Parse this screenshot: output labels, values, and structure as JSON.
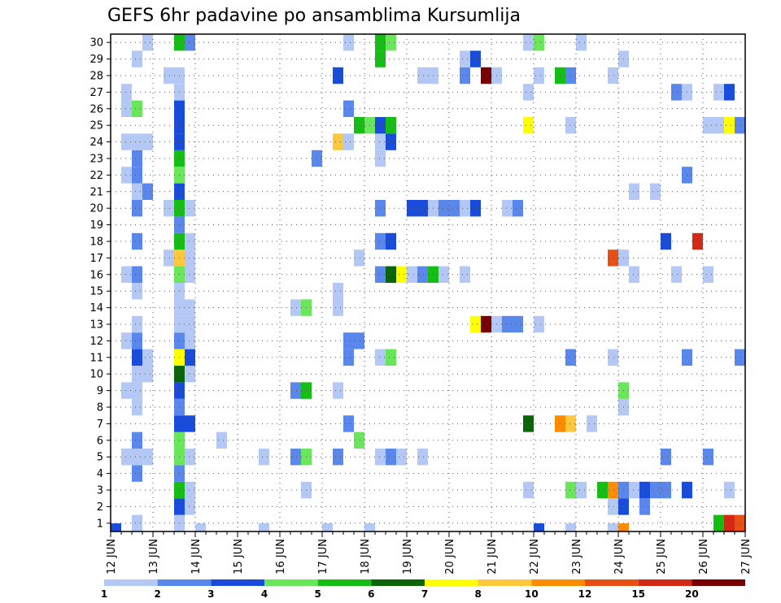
{
  "chart_data": {
    "type": "heatmap",
    "title": "GEFS 6hr padavine po ansamblima Kursumlija",
    "x_ticks": [
      "12 JUN",
      "13 JUN",
      "14 JUN",
      "15 JUN",
      "16 JUN",
      "17 JUN",
      "18 JUN",
      "19 JUN",
      "20 JUN",
      "21 JUN",
      "22 JUN",
      "23 JUN",
      "24 JUN",
      "25 JUN",
      "26 JUN",
      "27 JUN"
    ],
    "y_ticks": [
      "1",
      "2",
      "3",
      "4",
      "5",
      "6",
      "7",
      "8",
      "9",
      "10",
      "11",
      "12",
      "13",
      "14",
      "15",
      "16",
      "17",
      "18",
      "19",
      "20",
      "21",
      "22",
      "23",
      "24",
      "25",
      "26",
      "27",
      "28",
      "29",
      "30"
    ],
    "xlim": [
      0,
      60
    ],
    "ylim": [
      0,
      30
    ],
    "grid": true,
    "colorbar": {
      "ticks": [
        "1",
        "2",
        "3",
        "4",
        "5",
        "6",
        "7",
        "8",
        "10",
        "12",
        "15",
        "20"
      ],
      "colors": [
        "#b4c8f5",
        "#5a87ec",
        "#1a4cdc",
        "#6ae65a",
        "#14be14",
        "#0a640a",
        "#ffff00",
        "#ffc83c",
        "#ff8c00",
        "#e65014",
        "#d22814",
        "#780000"
      ]
    },
    "cells": [
      {
        "x": 0,
        "y": 0,
        "c": 2
      },
      {
        "x": 2,
        "y": 0,
        "c": 0
      },
      {
        "x": 8,
        "y": 0,
        "c": 0
      },
      {
        "x": 14,
        "y": 0,
        "c": 0
      },
      {
        "x": 20,
        "y": 0,
        "c": 0
      },
      {
        "x": 24,
        "y": 0,
        "c": 0
      },
      {
        "x": 40,
        "y": 0,
        "c": 2
      },
      {
        "x": 43,
        "y": 0,
        "c": 0
      },
      {
        "x": 47,
        "y": 0,
        "c": 0
      },
      {
        "x": 48,
        "y": 0,
        "c": 8
      },
      {
        "x": 2,
        "y": 1,
        "c": 0
      },
      {
        "x": 6,
        "y": 1,
        "c": 0
      },
      {
        "x": 57,
        "y": 1,
        "c": 4
      },
      {
        "x": 58,
        "y": 1,
        "c": 10
      },
      {
        "x": 59,
        "y": 1,
        "c": 9
      },
      {
        "x": 6,
        "y": 2,
        "c": 2
      },
      {
        "x": 7,
        "y": 2,
        "c": 0
      },
      {
        "x": 47,
        "y": 2,
        "c": 0
      },
      {
        "x": 48,
        "y": 2,
        "c": 2
      },
      {
        "x": 50,
        "y": 2,
        "c": 1
      },
      {
        "x": 6,
        "y": 3,
        "c": 4
      },
      {
        "x": 7,
        "y": 3,
        "c": 0
      },
      {
        "x": 18,
        "y": 3,
        "c": 0
      },
      {
        "x": 39,
        "y": 3,
        "c": 0
      },
      {
        "x": 43,
        "y": 3,
        "c": 3
      },
      {
        "x": 44,
        "y": 3,
        "c": 0
      },
      {
        "x": 46,
        "y": 3,
        "c": 4
      },
      {
        "x": 47,
        "y": 3,
        "c": 8
      },
      {
        "x": 48,
        "y": 3,
        "c": 1
      },
      {
        "x": 49,
        "y": 3,
        "c": 0
      },
      {
        "x": 50,
        "y": 3,
        "c": 2
      },
      {
        "x": 51,
        "y": 3,
        "c": 1
      },
      {
        "x": 52,
        "y": 3,
        "c": 1
      },
      {
        "x": 54,
        "y": 3,
        "c": 2
      },
      {
        "x": 58,
        "y": 3,
        "c": 0
      },
      {
        "x": 2,
        "y": 4,
        "c": 1
      },
      {
        "x": 6,
        "y": 4,
        "c": 1
      },
      {
        "x": 1,
        "y": 5,
        "c": 0
      },
      {
        "x": 2,
        "y": 5,
        "c": 0
      },
      {
        "x": 3,
        "y": 5,
        "c": 0
      },
      {
        "x": 6,
        "y": 5,
        "c": 3
      },
      {
        "x": 7,
        "y": 5,
        "c": 0
      },
      {
        "x": 14,
        "y": 5,
        "c": 0
      },
      {
        "x": 17,
        "y": 5,
        "c": 1
      },
      {
        "x": 18,
        "y": 5,
        "c": 3
      },
      {
        "x": 21,
        "y": 5,
        "c": 1
      },
      {
        "x": 25,
        "y": 5,
        "c": 0
      },
      {
        "x": 26,
        "y": 5,
        "c": 1
      },
      {
        "x": 27,
        "y": 5,
        "c": 0
      },
      {
        "x": 29,
        "y": 5,
        "c": 0
      },
      {
        "x": 52,
        "y": 5,
        "c": 1
      },
      {
        "x": 56,
        "y": 5,
        "c": 1
      },
      {
        "x": 2,
        "y": 6,
        "c": 1
      },
      {
        "x": 6,
        "y": 6,
        "c": 3
      },
      {
        "x": 10,
        "y": 6,
        "c": 0
      },
      {
        "x": 23,
        "y": 6,
        "c": 3
      },
      {
        "x": 6,
        "y": 7,
        "c": 2
      },
      {
        "x": 7,
        "y": 7,
        "c": 2
      },
      {
        "x": 22,
        "y": 7,
        "c": 1
      },
      {
        "x": 39,
        "y": 7,
        "c": 5
      },
      {
        "x": 42,
        "y": 7,
        "c": 8
      },
      {
        "x": 43,
        "y": 7,
        "c": 7
      },
      {
        "x": 45,
        "y": 7,
        "c": 0
      },
      {
        "x": 2,
        "y": 8,
        "c": 0
      },
      {
        "x": 6,
        "y": 8,
        "c": 1
      },
      {
        "x": 48,
        "y": 8,
        "c": 0
      },
      {
        "x": 1,
        "y": 9,
        "c": 0
      },
      {
        "x": 2,
        "y": 9,
        "c": 0
      },
      {
        "x": 6,
        "y": 9,
        "c": 2
      },
      {
        "x": 17,
        "y": 9,
        "c": 1
      },
      {
        "x": 18,
        "y": 9,
        "c": 4
      },
      {
        "x": 21,
        "y": 9,
        "c": 0
      },
      {
        "x": 48,
        "y": 9,
        "c": 3
      },
      {
        "x": 2,
        "y": 10,
        "c": 0
      },
      {
        "x": 3,
        "y": 10,
        "c": 0
      },
      {
        "x": 6,
        "y": 10,
        "c": 5
      },
      {
        "x": 7,
        "y": 10,
        "c": 0
      },
      {
        "x": 2,
        "y": 11,
        "c": 2
      },
      {
        "x": 3,
        "y": 11,
        "c": 0
      },
      {
        "x": 6,
        "y": 11,
        "c": 6
      },
      {
        "x": 7,
        "y": 11,
        "c": 2
      },
      {
        "x": 22,
        "y": 11,
        "c": 1
      },
      {
        "x": 25,
        "y": 11,
        "c": 0
      },
      {
        "x": 26,
        "y": 11,
        "c": 3
      },
      {
        "x": 43,
        "y": 11,
        "c": 1
      },
      {
        "x": 47,
        "y": 11,
        "c": 0
      },
      {
        "x": 54,
        "y": 11,
        "c": 1
      },
      {
        "x": 59,
        "y": 11,
        "c": 1
      },
      {
        "x": 1,
        "y": 12,
        "c": 0
      },
      {
        "x": 2,
        "y": 12,
        "c": 1
      },
      {
        "x": 6,
        "y": 12,
        "c": 1
      },
      {
        "x": 7,
        "y": 12,
        "c": 0
      },
      {
        "x": 22,
        "y": 12,
        "c": 1
      },
      {
        "x": 23,
        "y": 12,
        "c": 1
      },
      {
        "x": 2,
        "y": 13,
        "c": 0
      },
      {
        "x": 6,
        "y": 13,
        "c": 0
      },
      {
        "x": 7,
        "y": 13,
        "c": 0
      },
      {
        "x": 34,
        "y": 13,
        "c": 6
      },
      {
        "x": 35,
        "y": 13,
        "c": 11
      },
      {
        "x": 36,
        "y": 13,
        "c": 0
      },
      {
        "x": 37,
        "y": 13,
        "c": 1
      },
      {
        "x": 38,
        "y": 13,
        "c": 1
      },
      {
        "x": 40,
        "y": 13,
        "c": 0
      },
      {
        "x": 6,
        "y": 14,
        "c": 0
      },
      {
        "x": 7,
        "y": 14,
        "c": 0
      },
      {
        "x": 17,
        "y": 14,
        "c": 0
      },
      {
        "x": 18,
        "y": 14,
        "c": 3
      },
      {
        "x": 21,
        "y": 14,
        "c": 0
      },
      {
        "x": 2,
        "y": 15,
        "c": 0
      },
      {
        "x": 6,
        "y": 15,
        "c": 0
      },
      {
        "x": 21,
        "y": 15,
        "c": 0
      },
      {
        "x": 1,
        "y": 16,
        "c": 0
      },
      {
        "x": 2,
        "y": 16,
        "c": 1
      },
      {
        "x": 6,
        "y": 16,
        "c": 3
      },
      {
        "x": 7,
        "y": 16,
        "c": 0
      },
      {
        "x": 25,
        "y": 16,
        "c": 1
      },
      {
        "x": 26,
        "y": 16,
        "c": 5
      },
      {
        "x": 27,
        "y": 16,
        "c": 6
      },
      {
        "x": 28,
        "y": 16,
        "c": 0
      },
      {
        "x": 29,
        "y": 16,
        "c": 1
      },
      {
        "x": 30,
        "y": 16,
        "c": 4
      },
      {
        "x": 31,
        "y": 16,
        "c": 0
      },
      {
        "x": 33,
        "y": 16,
        "c": 0
      },
      {
        "x": 49,
        "y": 16,
        "c": 0
      },
      {
        "x": 53,
        "y": 16,
        "c": 0
      },
      {
        "x": 56,
        "y": 16,
        "c": 0
      },
      {
        "x": 5,
        "y": 17,
        "c": 0
      },
      {
        "x": 6,
        "y": 17,
        "c": 7
      },
      {
        "x": 7,
        "y": 17,
        "c": 0
      },
      {
        "x": 23,
        "y": 17,
        "c": 0
      },
      {
        "x": 47,
        "y": 17,
        "c": 9
      },
      {
        "x": 48,
        "y": 17,
        "c": 0
      },
      {
        "x": 2,
        "y": 18,
        "c": 1
      },
      {
        "x": 6,
        "y": 18,
        "c": 4
      },
      {
        "x": 7,
        "y": 18,
        "c": 0
      },
      {
        "x": 25,
        "y": 18,
        "c": 1
      },
      {
        "x": 26,
        "y": 18,
        "c": 2
      },
      {
        "x": 52,
        "y": 18,
        "c": 2
      },
      {
        "x": 55,
        "y": 18,
        "c": 10
      },
      {
        "x": 6,
        "y": 19,
        "c": 1
      },
      {
        "x": 2,
        "y": 20,
        "c": 1
      },
      {
        "x": 5,
        "y": 20,
        "c": 0
      },
      {
        "x": 6,
        "y": 20,
        "c": 4
      },
      {
        "x": 7,
        "y": 20,
        "c": 0
      },
      {
        "x": 25,
        "y": 20,
        "c": 1
      },
      {
        "x": 28,
        "y": 20,
        "c": 2
      },
      {
        "x": 29,
        "y": 20,
        "c": 2
      },
      {
        "x": 30,
        "y": 20,
        "c": 0
      },
      {
        "x": 31,
        "y": 20,
        "c": 1
      },
      {
        "x": 32,
        "y": 20,
        "c": 1
      },
      {
        "x": 33,
        "y": 20,
        "c": 0
      },
      {
        "x": 34,
        "y": 20,
        "c": 2
      },
      {
        "x": 37,
        "y": 20,
        "c": 0
      },
      {
        "x": 38,
        "y": 20,
        "c": 1
      },
      {
        "x": 2,
        "y": 21,
        "c": 0
      },
      {
        "x": 3,
        "y": 21,
        "c": 1
      },
      {
        "x": 6,
        "y": 21,
        "c": 2
      },
      {
        "x": 49,
        "y": 21,
        "c": 0
      },
      {
        "x": 51,
        "y": 21,
        "c": 0
      },
      {
        "x": 1,
        "y": 22,
        "c": 0
      },
      {
        "x": 2,
        "y": 22,
        "c": 1
      },
      {
        "x": 6,
        "y": 22,
        "c": 3
      },
      {
        "x": 54,
        "y": 22,
        "c": 1
      },
      {
        "x": 2,
        "y": 23,
        "c": 1
      },
      {
        "x": 6,
        "y": 23,
        "c": 4
      },
      {
        "x": 19,
        "y": 23,
        "c": 1
      },
      {
        "x": 25,
        "y": 23,
        "c": 0
      },
      {
        "x": 1,
        "y": 24,
        "c": 0
      },
      {
        "x": 2,
        "y": 24,
        "c": 0
      },
      {
        "x": 3,
        "y": 24,
        "c": 0
      },
      {
        "x": 6,
        "y": 24,
        "c": 2
      },
      {
        "x": 21,
        "y": 24,
        "c": 7
      },
      {
        "x": 22,
        "y": 24,
        "c": 0
      },
      {
        "x": 25,
        "y": 24,
        "c": 0
      },
      {
        "x": 26,
        "y": 24,
        "c": 2
      },
      {
        "x": 6,
        "y": 25,
        "c": 2
      },
      {
        "x": 23,
        "y": 25,
        "c": 4
      },
      {
        "x": 24,
        "y": 25,
        "c": 3
      },
      {
        "x": 25,
        "y": 25,
        "c": 2
      },
      {
        "x": 26,
        "y": 25,
        "c": 4
      },
      {
        "x": 39,
        "y": 25,
        "c": 6
      },
      {
        "x": 43,
        "y": 25,
        "c": 0
      },
      {
        "x": 56,
        "y": 25,
        "c": 0
      },
      {
        "x": 57,
        "y": 25,
        "c": 0
      },
      {
        "x": 58,
        "y": 25,
        "c": 6
      },
      {
        "x": 59,
        "y": 25,
        "c": 1
      },
      {
        "x": 1,
        "y": 26,
        "c": 0
      },
      {
        "x": 2,
        "y": 26,
        "c": 3
      },
      {
        "x": 6,
        "y": 26,
        "c": 2
      },
      {
        "x": 22,
        "y": 26,
        "c": 1
      },
      {
        "x": 1,
        "y": 27,
        "c": 0
      },
      {
        "x": 6,
        "y": 27,
        "c": 0
      },
      {
        "x": 39,
        "y": 27,
        "c": 0
      },
      {
        "x": 53,
        "y": 27,
        "c": 1
      },
      {
        "x": 54,
        "y": 27,
        "c": 0
      },
      {
        "x": 57,
        "y": 27,
        "c": 0
      },
      {
        "x": 58,
        "y": 27,
        "c": 2
      },
      {
        "x": 5,
        "y": 28,
        "c": 0
      },
      {
        "x": 6,
        "y": 28,
        "c": 0
      },
      {
        "x": 21,
        "y": 28,
        "c": 2
      },
      {
        "x": 29,
        "y": 28,
        "c": 0
      },
      {
        "x": 30,
        "y": 28,
        "c": 0
      },
      {
        "x": 33,
        "y": 28,
        "c": 1
      },
      {
        "x": 35,
        "y": 28,
        "c": 11
      },
      {
        "x": 36,
        "y": 28,
        "c": 0
      },
      {
        "x": 40,
        "y": 28,
        "c": 0
      },
      {
        "x": 42,
        "y": 28,
        "c": 4
      },
      {
        "x": 43,
        "y": 28,
        "c": 1
      },
      {
        "x": 47,
        "y": 28,
        "c": 0
      },
      {
        "x": 2,
        "y": 29,
        "c": 0
      },
      {
        "x": 25,
        "y": 29,
        "c": 4
      },
      {
        "x": 33,
        "y": 29,
        "c": 0
      },
      {
        "x": 34,
        "y": 29,
        "c": 2
      },
      {
        "x": 48,
        "y": 29,
        "c": 0
      },
      {
        "x": 3,
        "y": 30,
        "c": 0
      },
      {
        "x": 6,
        "y": 30,
        "c": 4
      },
      {
        "x": 7,
        "y": 30,
        "c": 1
      },
      {
        "x": 22,
        "y": 30,
        "c": 0
      },
      {
        "x": 25,
        "y": 30,
        "c": 4
      },
      {
        "x": 26,
        "y": 30,
        "c": 3
      },
      {
        "x": 39,
        "y": 30,
        "c": 0
      },
      {
        "x": 40,
        "y": 30,
        "c": 3
      },
      {
        "x": 44,
        "y": 30,
        "c": 0
      }
    ]
  }
}
